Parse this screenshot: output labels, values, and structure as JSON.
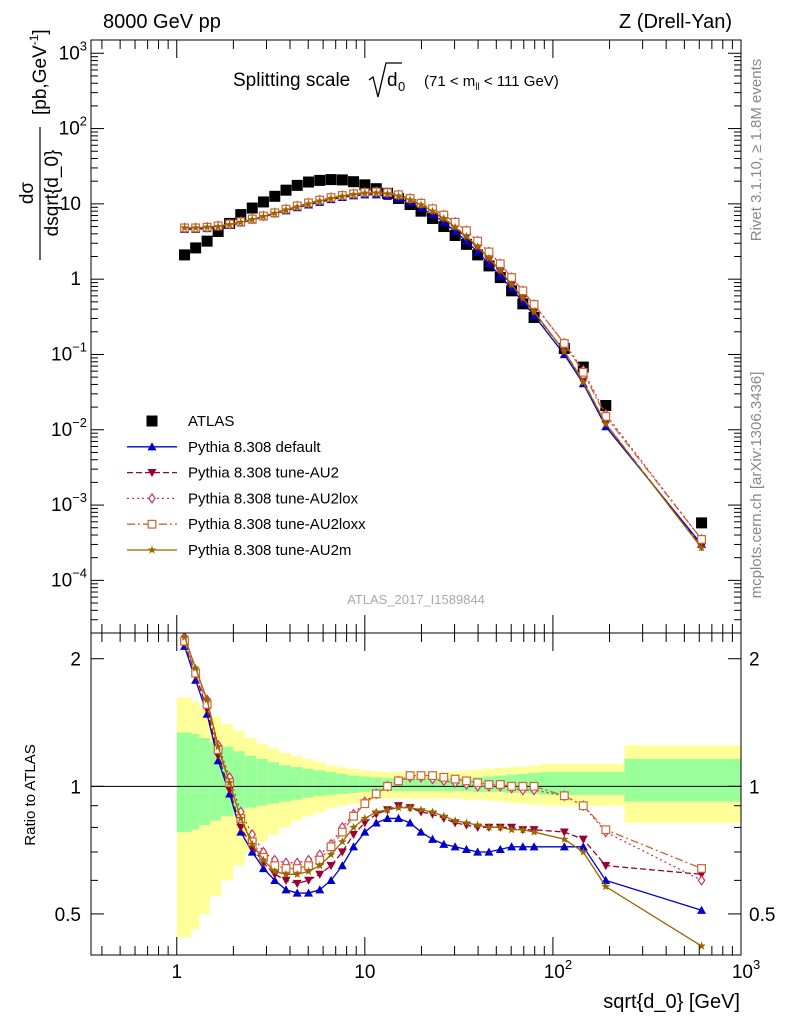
{
  "header": {
    "left": "8000 GeV pp",
    "right": "Z (Drell-Yan)"
  },
  "side_labels": {
    "rivet": "Rivet 3.1.10, ≥ 1.8M events",
    "mcplots": "mcplots.cern.ch [arXiv:1306.3436]"
  },
  "watermark": "ATLAS_2017_I1589844",
  "chart_data": {
    "type": "line",
    "title_main": "Splitting scale",
    "title_sqrt": "d",
    "title_sub": "0",
    "title_range_pre": "(71 < m",
    "title_range_sub": "ll",
    "title_range_post": " < 111 GeV)",
    "xlabel": "sqrt{d_0} [GeV]",
    "ylabel_num": "dσ",
    "ylabel_den": "dsqrt{d_0}",
    "ylabel_unit": "[pb,GeV",
    "ylabel_unit_sup": "-1",
    "ylabel_unit_close": "]",
    "ratio_ylabel": "Ratio to ATLAS",
    "x_scale": "log",
    "y_scale": "log",
    "xlim": [
      0.35,
      1000
    ],
    "ylim": [
      2e-05,
      1500
    ],
    "ratio_ylim": [
      0.4,
      2.3
    ],
    "x_ticks": [
      {
        "value": 1,
        "label": "1"
      },
      {
        "value": 10,
        "label": "10"
      },
      {
        "value": 100,
        "label": "10",
        "sup": "2"
      },
      {
        "value": 1000,
        "label": "10",
        "sup": "3"
      }
    ],
    "y_ticks": [
      {
        "value": 1000,
        "label": "10",
        "sup": "3"
      },
      {
        "value": 100,
        "label": "10",
        "sup": "2"
      },
      {
        "value": 10,
        "label": "10",
        "sup": ""
      },
      {
        "value": 1,
        "label": "1",
        "sup": ""
      },
      {
        "value": 0.1,
        "label": "10",
        "sup": "−1"
      },
      {
        "value": 0.01,
        "label": "10",
        "sup": "−2"
      },
      {
        "value": 0.001,
        "label": "10",
        "sup": "−3"
      },
      {
        "value": 0.0001,
        "label": "10",
        "sup": "−4"
      }
    ],
    "ratio_ticks": [
      {
        "value": 2,
        "label": "2"
      },
      {
        "value": 1,
        "label": "1"
      },
      {
        "value": 0.5,
        "label": "0.5"
      }
    ],
    "x": [
      1.1,
      1.26,
      1.45,
      1.66,
      1.91,
      2.19,
      2.52,
      2.89,
      3.32,
      3.81,
      4.37,
      5.02,
      5.76,
      6.61,
      7.59,
      8.71,
      10.0,
      11.5,
      13.2,
      15.1,
      17.4,
      19.9,
      22.9,
      26.3,
      30.2,
      34.7,
      39.8,
      45.7,
      52.5,
      60.3,
      69.2,
      79.4,
      115,
      145,
      191,
      617
    ],
    "bins": [
      {
        "x0": 1.0,
        "x1": 1.2,
        "lo1": 0.78,
        "hi1": 1.34,
        "lo2": 0.44,
        "hi2": 1.62
      },
      {
        "x0": 1.2,
        "x1": 1.32,
        "lo1": 0.79,
        "hi1": 1.33,
        "lo2": 0.46,
        "hi2": 1.58
      },
      {
        "x0": 1.32,
        "x1": 1.5,
        "lo1": 0.81,
        "hi1": 1.3,
        "lo2": 0.5,
        "hi2": 1.52
      },
      {
        "x0": 1.5,
        "x1": 1.72,
        "lo1": 0.83,
        "hi1": 1.27,
        "lo2": 0.55,
        "hi2": 1.46
      },
      {
        "x0": 1.72,
        "x1": 2.0,
        "lo1": 0.85,
        "hi1": 1.24,
        "lo2": 0.6,
        "hi2": 1.4
      },
      {
        "x0": 2.0,
        "x1": 2.3,
        "lo1": 0.87,
        "hi1": 1.21,
        "lo2": 0.65,
        "hi2": 1.35
      },
      {
        "x0": 2.3,
        "x1": 2.65,
        "lo1": 0.89,
        "hi1": 1.18,
        "lo2": 0.7,
        "hi2": 1.3
      },
      {
        "x0": 2.65,
        "x1": 3.05,
        "lo1": 0.9,
        "hi1": 1.16,
        "lo2": 0.74,
        "hi2": 1.26
      },
      {
        "x0": 3.05,
        "x1": 3.5,
        "lo1": 0.91,
        "hi1": 1.14,
        "lo2": 0.77,
        "hi2": 1.23
      },
      {
        "x0": 3.5,
        "x1": 4.05,
        "lo1": 0.92,
        "hi1": 1.12,
        "lo2": 0.8,
        "hi2": 1.2
      },
      {
        "x0": 4.05,
        "x1": 4.65,
        "lo1": 0.93,
        "hi1": 1.11,
        "lo2": 0.83,
        "hi2": 1.18
      },
      {
        "x0": 4.65,
        "x1": 5.35,
        "lo1": 0.94,
        "hi1": 1.1,
        "lo2": 0.85,
        "hi2": 1.16
      },
      {
        "x0": 5.35,
        "x1": 6.15,
        "lo1": 0.95,
        "hi1": 1.09,
        "lo2": 0.87,
        "hi2": 1.14
      },
      {
        "x0": 6.15,
        "x1": 7.1,
        "lo1": 0.955,
        "hi1": 1.08,
        "lo2": 0.89,
        "hi2": 1.12
      },
      {
        "x0": 7.1,
        "x1": 8.15,
        "lo1": 0.96,
        "hi1": 1.07,
        "lo2": 0.9,
        "hi2": 1.11
      },
      {
        "x0": 8.15,
        "x1": 9.35,
        "lo1": 0.965,
        "hi1": 1.06,
        "lo2": 0.91,
        "hi2": 1.1
      },
      {
        "x0": 9.35,
        "x1": 10.7,
        "lo1": 0.97,
        "hi1": 1.055,
        "lo2": 0.92,
        "hi2": 1.09
      },
      {
        "x0": 10.7,
        "x1": 12.3,
        "lo1": 0.975,
        "hi1": 1.05,
        "lo2": 0.93,
        "hi2": 1.085
      },
      {
        "x0": 12.3,
        "x1": 14.1,
        "lo1": 0.975,
        "hi1": 1.045,
        "lo2": 0.935,
        "hi2": 1.08
      },
      {
        "x0": 14.1,
        "x1": 16.2,
        "lo1": 0.975,
        "hi1": 1.045,
        "lo2": 0.935,
        "hi2": 1.08
      },
      {
        "x0": 16.2,
        "x1": 18.6,
        "lo1": 0.975,
        "hi1": 1.045,
        "lo2": 0.935,
        "hi2": 1.08
      },
      {
        "x0": 18.6,
        "x1": 21.4,
        "lo1": 0.975,
        "hi1": 1.045,
        "lo2": 0.935,
        "hi2": 1.08
      },
      {
        "x0": 21.4,
        "x1": 24.6,
        "lo1": 0.975,
        "hi1": 1.045,
        "lo2": 0.935,
        "hi2": 1.08
      },
      {
        "x0": 24.6,
        "x1": 28.2,
        "lo1": 0.975,
        "hi1": 1.045,
        "lo2": 0.935,
        "hi2": 1.08
      },
      {
        "x0": 28.2,
        "x1": 32.4,
        "lo1": 0.975,
        "hi1": 1.045,
        "lo2": 0.935,
        "hi2": 1.085
      },
      {
        "x0": 32.4,
        "x1": 37.2,
        "lo1": 0.975,
        "hi1": 1.05,
        "lo2": 0.93,
        "hi2": 1.09
      },
      {
        "x0": 37.2,
        "x1": 42.7,
        "lo1": 0.97,
        "hi1": 1.05,
        "lo2": 0.93,
        "hi2": 1.095
      },
      {
        "x0": 42.7,
        "x1": 49.0,
        "lo1": 0.97,
        "hi1": 1.055,
        "lo2": 0.925,
        "hi2": 1.1
      },
      {
        "x0": 49.0,
        "x1": 56.3,
        "lo1": 0.97,
        "hi1": 1.06,
        "lo2": 0.92,
        "hi2": 1.105
      },
      {
        "x0": 56.3,
        "x1": 64.6,
        "lo1": 0.965,
        "hi1": 1.065,
        "lo2": 0.915,
        "hi2": 1.11
      },
      {
        "x0": 64.6,
        "x1": 74.2,
        "lo1": 0.965,
        "hi1": 1.07,
        "lo2": 0.91,
        "hi2": 1.115
      },
      {
        "x0": 74.2,
        "x1": 85.0,
        "lo1": 0.96,
        "hi1": 1.075,
        "lo2": 0.905,
        "hi2": 1.12
      },
      {
        "x0": 85.0,
        "x1": 240,
        "lo1": 0.955,
        "hi1": 1.08,
        "lo2": 0.9,
        "hi2": 1.13
      },
      {
        "x0": 240,
        "x1": 1000,
        "lo1": 0.92,
        "hi1": 1.16,
        "lo2": 0.82,
        "hi2": 1.25
      }
    ],
    "band_colors": {
      "inner": "#99ff99",
      "outer": "#ffff99"
    },
    "series": [
      {
        "name": "ATLAS",
        "color": "#000000",
        "marker": "square-filled",
        "dash": "none",
        "values": [
          2.1,
          2.6,
          3.2,
          4.3,
          5.5,
          7.2,
          8.8,
          10.6,
          12.6,
          15.2,
          17.6,
          19.5,
          20.5,
          21.0,
          20.8,
          19.7,
          17.9,
          15.9,
          13.8,
          11.8,
          9.8,
          8.0,
          6.4,
          5.0,
          3.8,
          2.9,
          2.1,
          1.5,
          1.05,
          0.7,
          0.47,
          0.31,
          0.12,
          0.068,
          0.021,
          0.00058
        ]
      },
      {
        "name": "Pythia 8.308 default",
        "color": "#0000cc",
        "marker": "triangle-up-filled",
        "dash": "none",
        "values": [
          4.6,
          4.6,
          4.7,
          4.9,
          5.2,
          5.6,
          6.1,
          6.7,
          7.4,
          8.1,
          8.9,
          9.7,
          10.5,
          11.4,
          12.2,
          12.8,
          13.2,
          13.2,
          12.6,
          11.7,
          10.4,
          8.8,
          7.2,
          5.7,
          4.3,
          3.2,
          2.3,
          1.6,
          1.1,
          0.75,
          0.5,
          0.33,
          0.1,
          0.041,
          0.011,
          0.0003
        ]
      },
      {
        "name": "Pythia 8.308 tune-AU2",
        "color": "#990033",
        "marker": "triangle-down-filled",
        "dash": "6,3",
        "values": [
          4.7,
          4.7,
          4.8,
          5.0,
          5.3,
          5.7,
          6.2,
          6.8,
          7.5,
          8.3,
          9.2,
          10.0,
          11.0,
          11.8,
          12.6,
          13.2,
          13.8,
          13.9,
          13.5,
          12.6,
          11.2,
          9.6,
          7.9,
          6.3,
          4.8,
          3.6,
          2.6,
          1.8,
          1.25,
          0.83,
          0.55,
          0.36,
          0.11,
          0.044,
          0.012,
          0.00028
        ]
      },
      {
        "name": "Pythia 8.308 tune-AU2lox",
        "color": "#cc3366",
        "marker": "diamond-open",
        "dash": "2,3",
        "values": [
          4.8,
          4.8,
          4.9,
          5.1,
          5.4,
          5.8,
          6.3,
          6.9,
          7.6,
          8.5,
          9.4,
          10.3,
          11.2,
          12.1,
          12.9,
          13.6,
          14.2,
          14.4,
          14.1,
          13.2,
          11.8,
          10.2,
          8.6,
          7.1,
          5.7,
          4.4,
          3.2,
          2.3,
          1.6,
          1.05,
          0.7,
          0.46,
          0.14,
          0.062,
          0.016,
          0.00035
        ]
      },
      {
        "name": "Pythia 8.308 tune-AU2loxx",
        "color": "#cc6633",
        "marker": "square-open",
        "dash": "8,3,2,3",
        "values": [
          4.8,
          4.8,
          4.9,
          5.1,
          5.4,
          5.8,
          6.3,
          6.9,
          7.6,
          8.5,
          9.4,
          10.3,
          11.2,
          12.1,
          12.9,
          13.6,
          14.2,
          14.4,
          14.1,
          13.2,
          11.8,
          10.2,
          8.6,
          7.1,
          5.7,
          4.4,
          3.2,
          2.3,
          1.6,
          1.05,
          0.7,
          0.46,
          0.14,
          0.058,
          0.015,
          0.00035
        ]
      },
      {
        "name": "Pythia 8.308 tune-AU2m",
        "color": "#996600",
        "marker": "star",
        "dash": "none",
        "values": [
          4.8,
          4.8,
          4.9,
          5.0,
          5.3,
          5.7,
          6.2,
          6.8,
          7.5,
          8.3,
          9.1,
          10.0,
          10.9,
          11.8,
          12.6,
          13.3,
          13.9,
          14.0,
          13.6,
          12.7,
          11.3,
          9.7,
          8.0,
          6.4,
          4.9,
          3.7,
          2.7,
          1.9,
          1.3,
          0.85,
          0.56,
          0.37,
          0.11,
          0.043,
          0.012,
          0.00027
        ]
      }
    ],
    "ratios": [
      {
        "name": "Pythia 8.308 default",
        "values": [
          2.14,
          1.78,
          1.48,
          1.15,
          0.96,
          0.78,
          0.7,
          0.64,
          0.6,
          0.57,
          0.56,
          0.56,
          0.57,
          0.6,
          0.65,
          0.72,
          0.78,
          0.82,
          0.84,
          0.84,
          0.82,
          0.78,
          0.75,
          0.73,
          0.72,
          0.71,
          0.7,
          0.7,
          0.71,
          0.72,
          0.72,
          0.72,
          0.72,
          0.72,
          0.6,
          0.51
        ]
      },
      {
        "name": "Pythia 8.308 tune-AU2",
        "values": [
          2.18,
          1.83,
          1.52,
          1.18,
          0.98,
          0.8,
          0.72,
          0.66,
          0.62,
          0.6,
          0.59,
          0.6,
          0.62,
          0.65,
          0.7,
          0.77,
          0.82,
          0.86,
          0.88,
          0.9,
          0.89,
          0.87,
          0.86,
          0.84,
          0.82,
          0.81,
          0.8,
          0.8,
          0.8,
          0.8,
          0.79,
          0.79,
          0.78,
          0.75,
          0.65,
          0.62
        ]
      },
      {
        "name": "Pythia 8.308 tune-AU2lox",
        "values": [
          2.25,
          1.88,
          1.6,
          1.25,
          1.05,
          0.87,
          0.77,
          0.7,
          0.67,
          0.66,
          0.66,
          0.67,
          0.69,
          0.73,
          0.8,
          0.86,
          0.92,
          0.96,
          1.0,
          1.03,
          1.05,
          1.05,
          1.04,
          1.03,
          1.02,
          1.01,
          1.0,
          1.0,
          1.0,
          0.99,
          0.98,
          0.98,
          0.95,
          0.9,
          0.78,
          0.6
        ]
      },
      {
        "name": "Pythia 8.308 tune-AU2loxx",
        "values": [
          2.2,
          1.85,
          1.56,
          1.22,
          1.02,
          0.84,
          0.74,
          0.68,
          0.65,
          0.64,
          0.64,
          0.65,
          0.67,
          0.72,
          0.78,
          0.85,
          0.91,
          0.96,
          1.0,
          1.03,
          1.06,
          1.06,
          1.06,
          1.05,
          1.04,
          1.03,
          1.02,
          1.01,
          1.01,
          1.0,
          1.0,
          1.0,
          0.95,
          0.9,
          0.79,
          0.64
        ]
      },
      {
        "name": "Pythia 8.308 tune-AU2m",
        "values": [
          2.25,
          1.9,
          1.6,
          1.24,
          1.02,
          0.84,
          0.73,
          0.67,
          0.63,
          0.62,
          0.62,
          0.63,
          0.65,
          0.69,
          0.74,
          0.8,
          0.84,
          0.87,
          0.88,
          0.89,
          0.89,
          0.88,
          0.87,
          0.85,
          0.83,
          0.82,
          0.81,
          0.8,
          0.8,
          0.79,
          0.79,
          0.78,
          0.75,
          0.7,
          0.58,
          0.42
        ]
      }
    ],
    "legend_position": "lower-left"
  }
}
